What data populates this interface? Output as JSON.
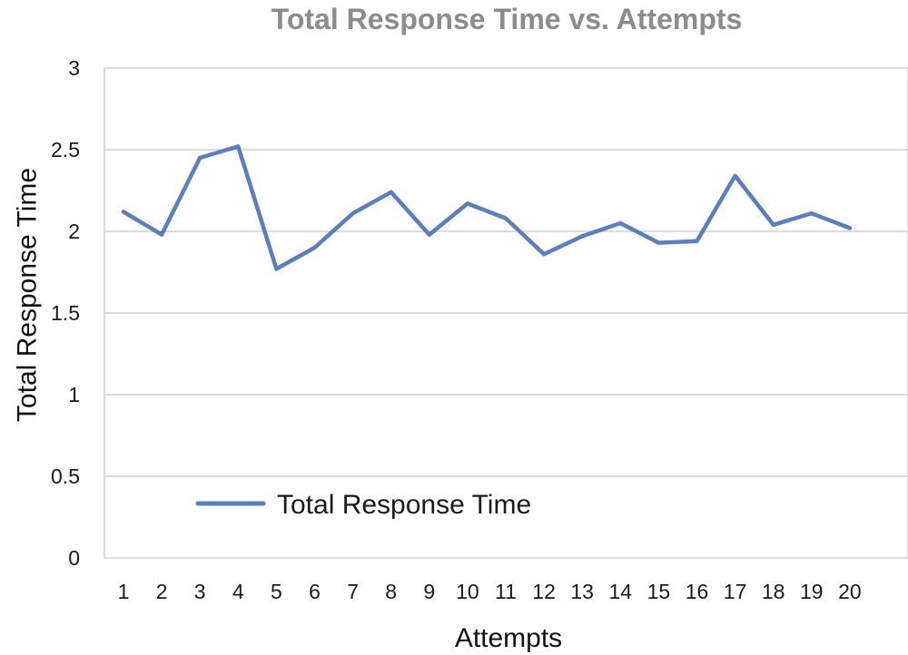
{
  "chart_data": {
    "type": "line",
    "title": "Total Response Time vs. Attempts",
    "xlabel": "Attempts",
    "ylabel": "Total Response Time",
    "categories": [
      "1",
      "2",
      "3",
      "4",
      "5",
      "6",
      "7",
      "8",
      "9",
      "10",
      "11",
      "12",
      "13",
      "14",
      "15",
      "16",
      "17",
      "18",
      "19",
      "20"
    ],
    "y_ticks": [
      "0",
      "0.5",
      "1",
      "1.5",
      "2",
      "2.5",
      "3"
    ],
    "ylim": [
      0,
      3
    ],
    "grid": true,
    "legend_position": "bottom-left",
    "series": [
      {
        "name": "Total Response Time",
        "color": "#5a7ebe",
        "values": [
          2.12,
          1.98,
          2.45,
          2.52,
          1.77,
          1.9,
          2.11,
          2.24,
          1.98,
          2.17,
          2.08,
          1.86,
          1.97,
          2.05,
          1.93,
          1.94,
          2.34,
          2.04,
          2.11,
          2.02
        ]
      }
    ]
  }
}
